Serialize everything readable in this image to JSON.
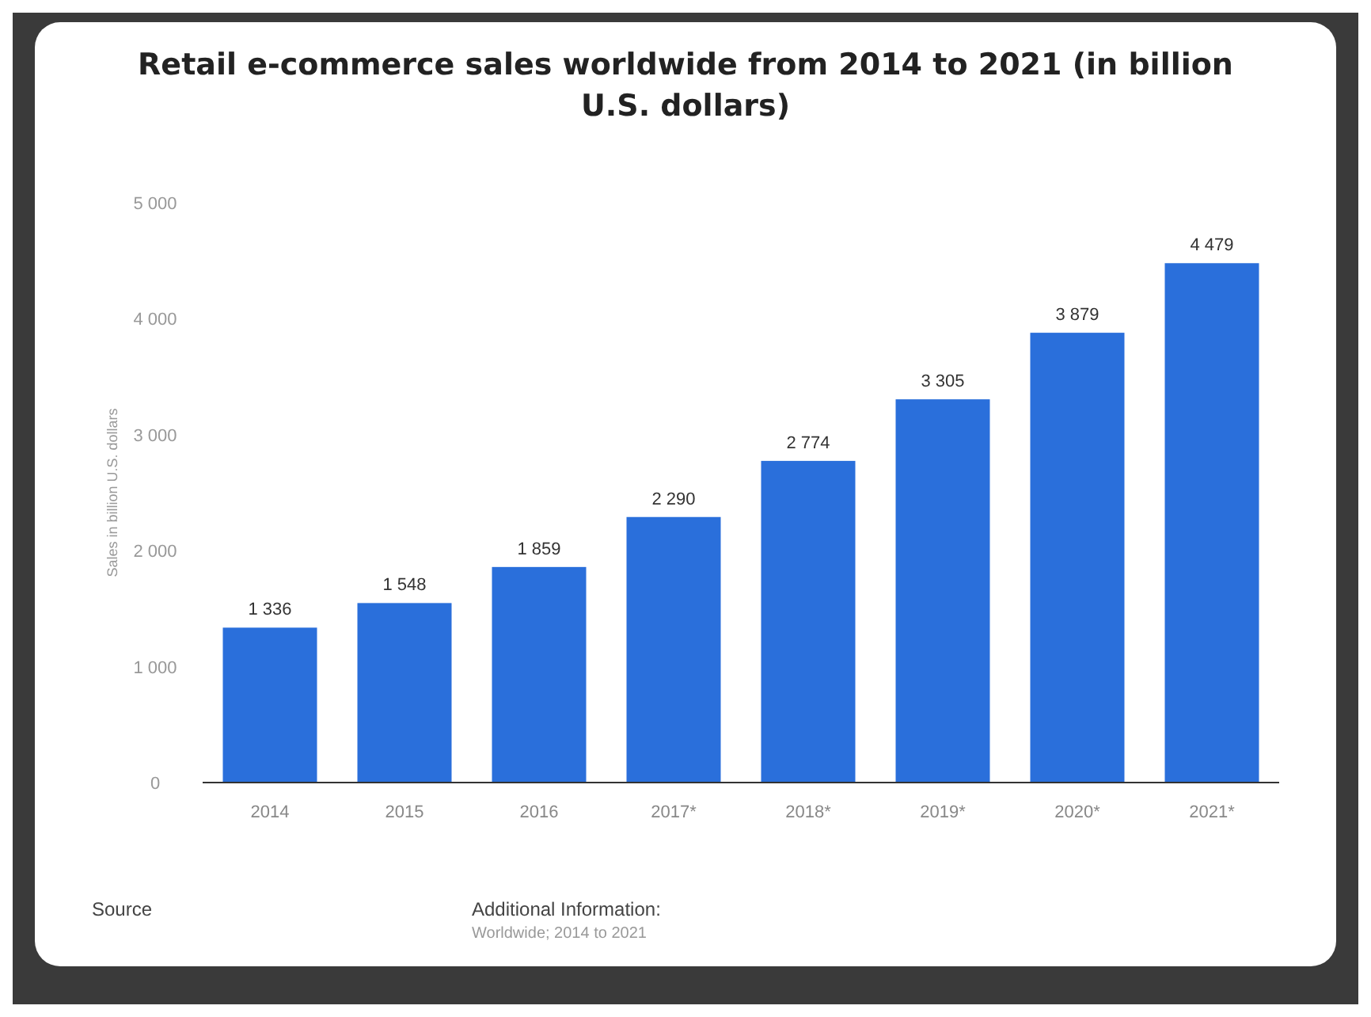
{
  "chart_data": {
    "type": "bar",
    "title": "Retail e-commerce sales worldwide from 2014 to 2021 (in billion U.S. dollars)",
    "ylabel": "Sales in billion U.S. dollars",
    "categories": [
      "2014",
      "2015",
      "2016",
      "2017*",
      "2018*",
      "2019*",
      "2020*",
      "2021*"
    ],
    "values": [
      1336,
      1548,
      1859,
      2290,
      2774,
      3305,
      3879,
      4479
    ],
    "value_labels": [
      "1 336",
      "1 548",
      "1 859",
      "2 290",
      "2 774",
      "3 305",
      "3 879",
      "4 479"
    ],
    "color": "#2a6fdb",
    "ylim": [
      0,
      5000
    ],
    "yticks": [
      {
        "value": 0,
        "label": "0"
      },
      {
        "value": 1000,
        "label": "1 000"
      },
      {
        "value": 2000,
        "label": "2 000"
      },
      {
        "value": 3000,
        "label": "3 000"
      },
      {
        "value": 4000,
        "label": "4 000"
      },
      {
        "value": 5000,
        "label": "5 000"
      }
    ],
    "grid": false,
    "annotations": [
      "Source",
      "Additional Information:",
      "Worldwide; 2014 to 2021"
    ]
  }
}
